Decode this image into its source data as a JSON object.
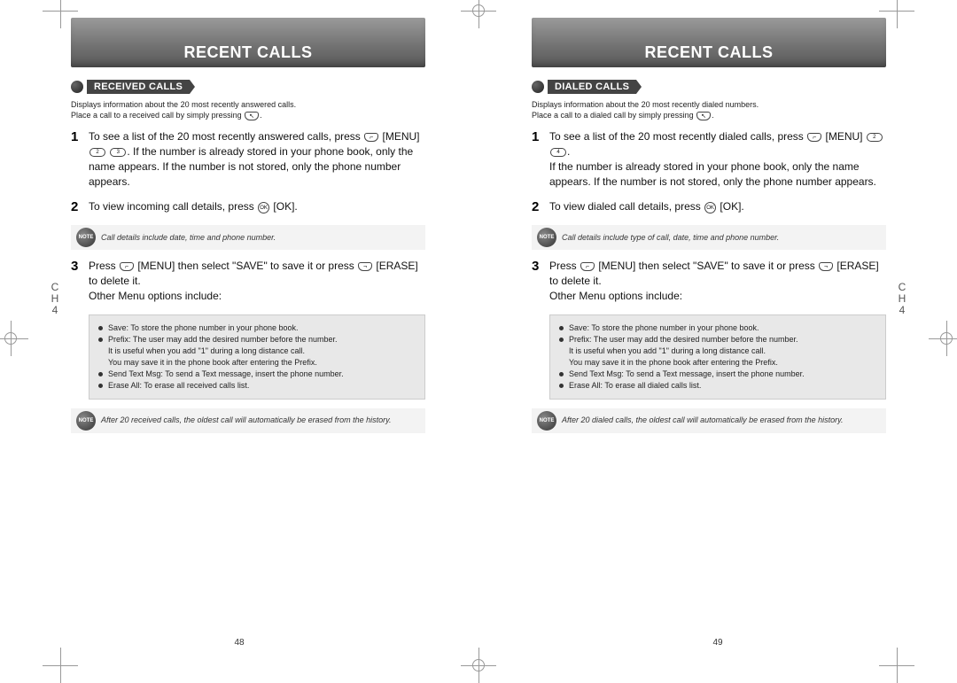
{
  "left": {
    "banner": "RECENT CALLS",
    "section": "RECEIVED CALLS",
    "intro_l1": "Displays information about the 20 most recently answered calls.",
    "intro_l2": "Place a call to a received call by simply pressing",
    "step1": "To see a list of the 20 most recently answered calls, press",
    "step1_mid": " [MENU] ",
    "step1_tail": ". If the number is already stored in your phone book, only the name appears. If the number is not stored, only the phone number appears.",
    "key2": "2",
    "key3": "3",
    "step2": "To view incoming call details, press ",
    "step2_tail": " [OK].",
    "note1": "Call details include date, time and phone number.",
    "step3a": "Press ",
    "step3b": " [MENU] then select \"SAVE\" to save it or press ",
    "step3c": " [ERASE] to delete it.",
    "step3d": "Other Menu options include:",
    "opt_save": "Save: To store the phone number in your phone book.",
    "opt_prefix1": "Prefix: The user may add the desired number before the number.",
    "opt_prefix2": "It is useful when you add \"1\" during a long distance call.",
    "opt_prefix3": "You may save it in the phone book after entering the Prefix.",
    "opt_sms": "Send Text Msg: To send a Text message, insert the phone number.",
    "opt_erase": "Erase All: To erase all received calls list.",
    "note2": "After 20 received calls, the oldest call will automatically be erased from the history.",
    "ch_c": "C",
    "ch_h": "H",
    "ch_n": "4",
    "pagenum": "48"
  },
  "right": {
    "banner": "RECENT CALLS",
    "section": "DIALED CALLS",
    "intro_l1": "Displays information about the 20 most recently dialed numbers.",
    "intro_l2": "Place a call to a dialed call by simply pressing",
    "step1": "To see a list of the 20 most recently dialed calls, press",
    "step1_mid": " [MENU] ",
    "step1_tail": "If the number is already stored in your phone book, only the name appears. If the number is not stored, only the phone number appears.",
    "key2": "2",
    "key4": "4",
    "step2": "To view dialed call details, press ",
    "step2_tail": " [OK].",
    "note1": "Call details include type of call, date, time and phone number.",
    "step3a": "Press ",
    "step3b": " [MENU] then select \"SAVE\" to save it or press ",
    "step3c": " [ERASE] to delete it.",
    "step3d": "Other Menu options include:",
    "opt_save": "Save: To store the phone number in your phone book.",
    "opt_prefix1": "Prefix: The user may add the desired number before the number.",
    "opt_prefix2": "It is useful when you add \"1\" during a long distance call.",
    "opt_prefix3": "You may save it in the phone book after entering the Prefix.",
    "opt_sms": "Send Text Msg: To send a Text message, insert the phone number.",
    "opt_erase": "Erase All: To erase all dialed calls list.",
    "note2": "After 20 dialed calls, the oldest call will automatically be erased from the history.",
    "ch_c": "C",
    "ch_h": "H",
    "ch_n": "4",
    "pagenum": "49"
  },
  "note_label": "NOTE",
  "ok_label": "OK"
}
